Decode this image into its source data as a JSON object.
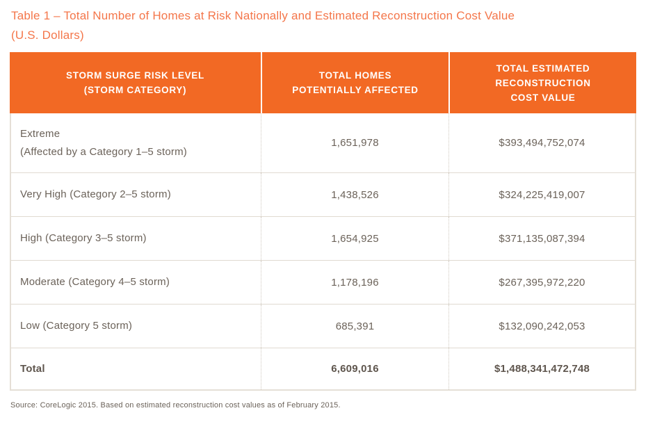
{
  "title": {
    "text": "Table 1 – Total Number of Homes at Risk Nationally and Estimated Reconstruction Cost Value\n(U.S. Dollars)"
  },
  "table": {
    "headers": {
      "risk_level": "STORM SURGE RISK LEVEL\n(STORM CATEGORY)",
      "total_homes": "TOTAL HOMES\nPOTENTIALLY AFFECTED",
      "cost_value": "TOTAL ESTIMATED\nRECONSTRUCTION\nCOST VALUE"
    },
    "rows": [
      {
        "risk_level": "Extreme\n(Affected by a Category 1–5 storm)",
        "total_homes": "1,651,978",
        "cost_value": "$393,494,752,074"
      },
      {
        "risk_level": "Very High (Category 2–5 storm)",
        "total_homes": "1,438,526",
        "cost_value": "$324,225,419,007"
      },
      {
        "risk_level": "High (Category 3–5 storm)",
        "total_homes": "1,654,925",
        "cost_value": "$371,135,087,394"
      },
      {
        "risk_level": "Moderate (Category 4–5 storm)",
        "total_homes": "1,178,196",
        "cost_value": "$267,395,972,220"
      },
      {
        "risk_level": "Low (Category 5 storm)",
        "total_homes": "685,391",
        "cost_value": "$132,090,242,053"
      }
    ],
    "total_row": {
      "risk_level": "Total",
      "total_homes": "6,609,016",
      "cost_value": "$1,488,341,472,748"
    }
  },
  "source_note": "Source: CoreLogic 2015. Based on estimated reconstruction cost values as of February 2015.",
  "colors": {
    "header_background": "#F26924",
    "header_text": "#FFFFFF",
    "title_text": "#F4764A",
    "body_text": "#6B6259",
    "border": "#E5DFD6"
  }
}
